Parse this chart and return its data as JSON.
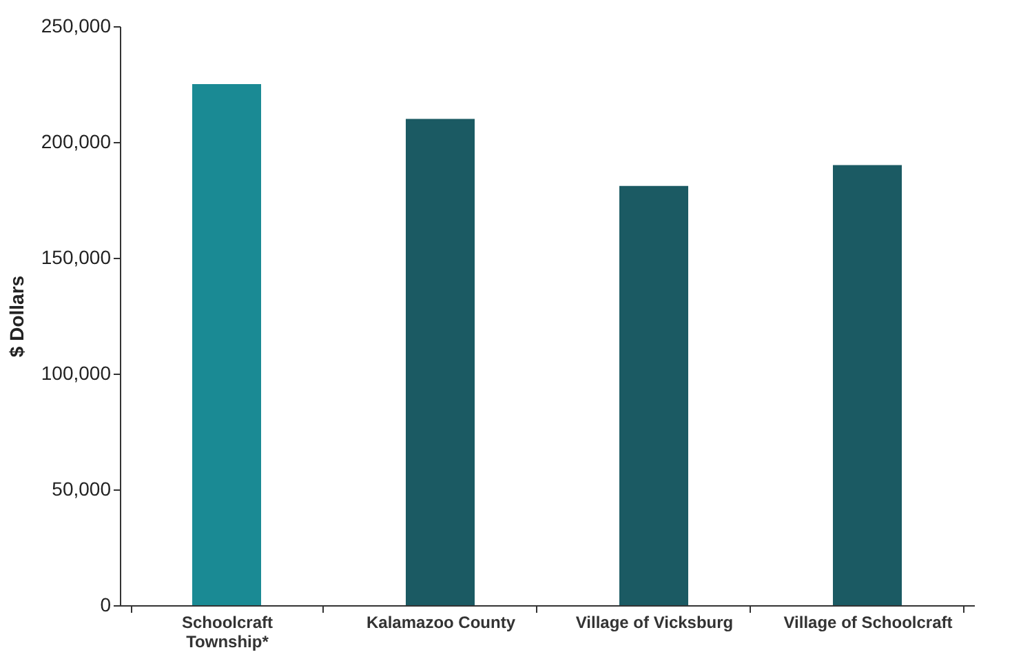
{
  "chart_data": {
    "type": "bar",
    "ylabel": "$ Dollars",
    "categories": [
      "Schoolcraft\nTownship*",
      "Kalamazoo County",
      "Village of Vicksburg",
      "Village of Schoolcraft"
    ],
    "values": [
      225000,
      210000,
      181000,
      190000
    ],
    "colors": [
      "#1a8a94",
      "#1b5a63",
      "#1b5a63",
      "#1b5a63"
    ],
    "ylim": [
      0,
      250000
    ],
    "yticks": [
      0,
      {
        "value": 50000,
        "label": "50,000"
      },
      {
        "value": 100000,
        "label": "100,000"
      },
      {
        "value": 150000,
        "label": "150,000"
      },
      {
        "value": 200000,
        "label": "200,000"
      },
      {
        "value": 250000,
        "label": "250,000"
      }
    ],
    "grid": false
  }
}
